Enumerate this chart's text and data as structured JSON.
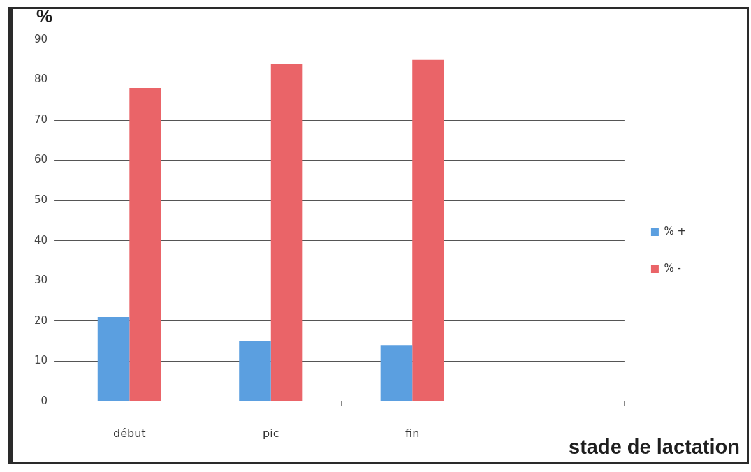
{
  "chart_data": {
    "type": "bar",
    "ylabel": "%",
    "xlabel": "stade de lactation",
    "categories": [
      "début",
      "pic",
      "fin",
      null
    ],
    "series": [
      {
        "name": "% +",
        "color": "#5b9fe0",
        "values": [
          21,
          15,
          14,
          null
        ]
      },
      {
        "name": "% -",
        "color": "#ea6468",
        "values": [
          78,
          84,
          85,
          null
        ]
      }
    ],
    "ylim": [
      0,
      90
    ],
    "yticks": [
      0,
      10,
      20,
      30,
      40,
      50,
      60,
      70,
      80,
      90
    ],
    "grid": "y",
    "legend": "right"
  }
}
